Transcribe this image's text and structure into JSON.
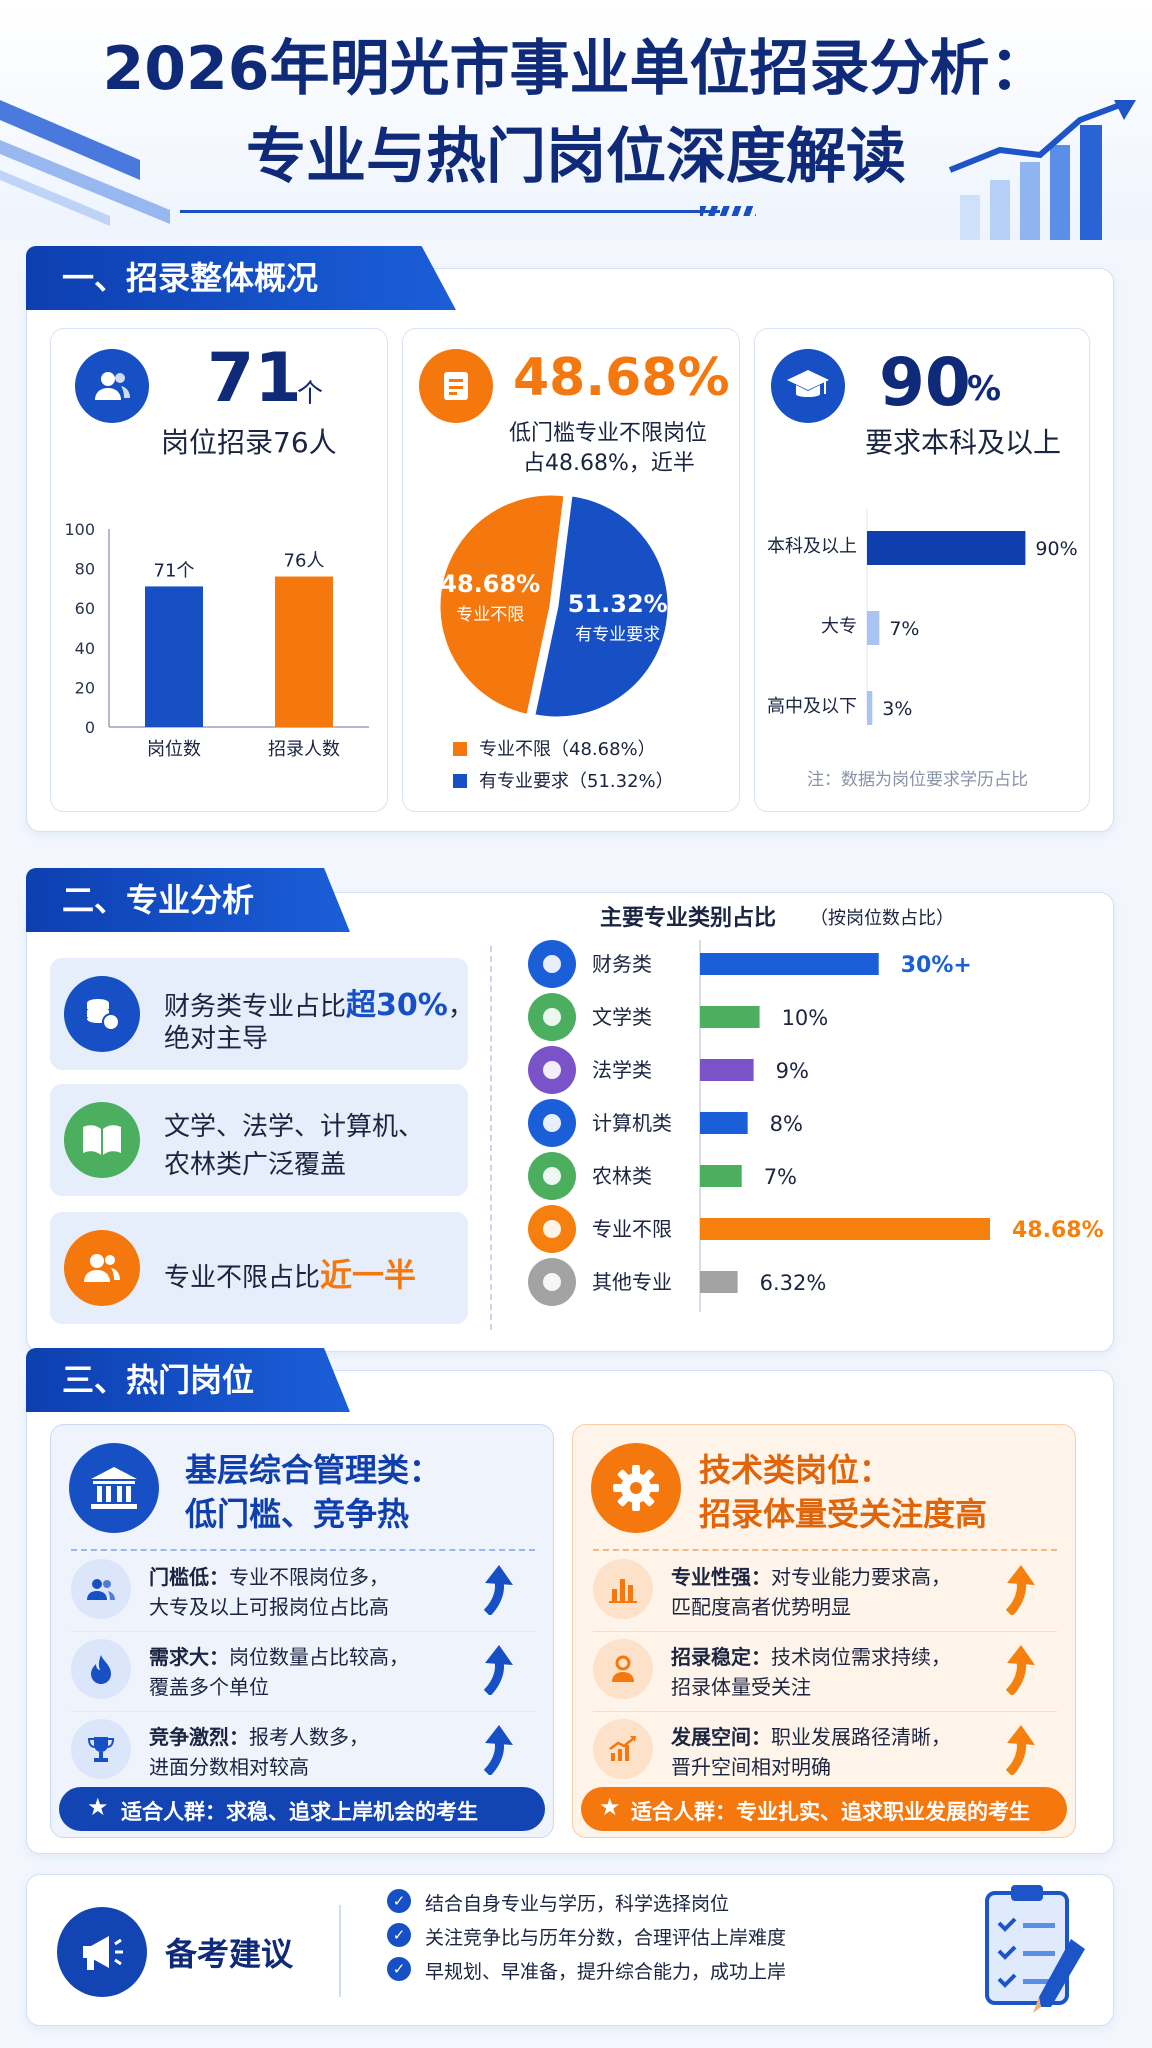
{
  "title": {
    "line1": "2026年明光市事业单位招录分析：",
    "line2": "专业与热门岗位深度解读"
  },
  "section1": {
    "heading": "一、招录整体概况",
    "card1": {
      "big": "71",
      "unit": "个",
      "caption": "岗位招录76人",
      "chart_data": {
        "type": "bar",
        "categories": [
          "岗位数",
          "招录人数"
        ],
        "values": [
          71,
          76
        ],
        "data_labels": [
          "71个",
          "76人"
        ],
        "y_ticks": [
          "100",
          "80",
          "60",
          "40",
          "20",
          "0"
        ],
        "ylim": [
          0,
          100
        ],
        "colors": [
          "#1650c4",
          "#f5780e"
        ]
      }
    },
    "card2": {
      "big": "48.68%",
      "caption1": "低门槛专业不限岗位",
      "caption2": "占48.68%，近半",
      "chart_data": {
        "type": "pie",
        "slices": [
          {
            "label": "专业不限",
            "value": 48.68,
            "text": "48.68%",
            "color": "#f5780e"
          },
          {
            "label": "有专业要求",
            "value": 51.32,
            "text": "51.32%",
            "color": "#1650c4"
          }
        ],
        "legend": [
          "专业不限（48.68%）",
          "有专业要求（51.32%）"
        ]
      }
    },
    "card3": {
      "big": "90",
      "unit": "%",
      "caption": "要求本科及以上",
      "chart_data": {
        "type": "bar",
        "orientation": "horizontal",
        "categories": [
          "本科及以上",
          "大专",
          "高中及以下"
        ],
        "values": [
          90,
          7,
          3
        ],
        "data_labels": [
          "90%",
          "7%",
          "3%"
        ],
        "colors": [
          "#0f3fae",
          "#a9c6f2",
          "#a9c6f2"
        ]
      },
      "note": "注：数据为岗位要求学历占比"
    }
  },
  "section2": {
    "heading": "二、专业分析",
    "points": [
      {
        "pre": "财务类专业占比",
        "hl": "超30%",
        "post": "，",
        "line2": "绝对主导"
      },
      {
        "line1": "文学、法学、计算机、",
        "line2": "农林类广泛覆盖"
      },
      {
        "pre": "专业不限占比",
        "hl": "近一半"
      }
    ],
    "chart_title": "主要专业类别占比",
    "chart_subtitle": "（按岗位数占比）",
    "chart_data": {
      "type": "bar",
      "orientation": "horizontal",
      "categories": [
        "财务类",
        "文学类",
        "法学类",
        "计算机类",
        "农林类",
        "专业不限",
        "其他专业"
      ],
      "values": [
        30,
        10,
        9,
        8,
        7,
        48.68,
        6.32
      ],
      "data_labels": [
        "30%+",
        "10%",
        "9%",
        "8%",
        "7%",
        "48.68%",
        "6.32%"
      ],
      "colors": [
        "#1a5fd8",
        "#4cae5f",
        "#7b53c9",
        "#1a5fd8",
        "#4cae5f",
        "#f5800e",
        "#a3a3a3"
      ],
      "icons": [
        "coins-icon",
        "book-icon",
        "scales-icon",
        "computer-icon",
        "leaf-icon",
        "people-icon",
        "more-icon"
      ]
    }
  },
  "section3": {
    "heading": "三、热门岗位",
    "left": {
      "title1": "基层综合管理类：",
      "title2": "低门槛、竞争热",
      "items": [
        {
          "b": "门槛低：",
          "t1": "专业不限岗位多，",
          "t2": "大专及以上可报岗位占比高"
        },
        {
          "b": "需求大：",
          "t1": "岗位数量占比较高，",
          "t2": "覆盖多个单位"
        },
        {
          "b": "竞争激烈：",
          "t1": "报考人数多，",
          "t2": "进面分数相对较高"
        }
      ],
      "footer": "适合人群：求稳、追求上岸机会的考生"
    },
    "right": {
      "title1": "技术类岗位：",
      "title2": "招录体量受关注度高",
      "items": [
        {
          "b": "专业性强：",
          "t1": "对专业能力要求高，",
          "t2": "匹配度高者优势明显"
        },
        {
          "b": "招录稳定：",
          "t1": "技术岗位需求持续，",
          "t2": "招录体量受关注"
        },
        {
          "b": "发展空间：",
          "t1": "职业发展路径清晰，",
          "t2": "晋升空间相对明确"
        }
      ],
      "footer": "适合人群：专业扎实、追求职业发展的考生"
    }
  },
  "advice": {
    "title": "备考建议",
    "items": [
      "结合自身专业与学历，科学选择岗位",
      "关注竞争比与历年分数，合理评估上岸难度",
      "早规划、早准备，提升综合能力，成功上岸"
    ]
  },
  "colors": {
    "navy": "#0f2a78",
    "blue": "#1650c4",
    "orange": "#f5780e",
    "green": "#4cae5f",
    "purple": "#7b53c9"
  }
}
